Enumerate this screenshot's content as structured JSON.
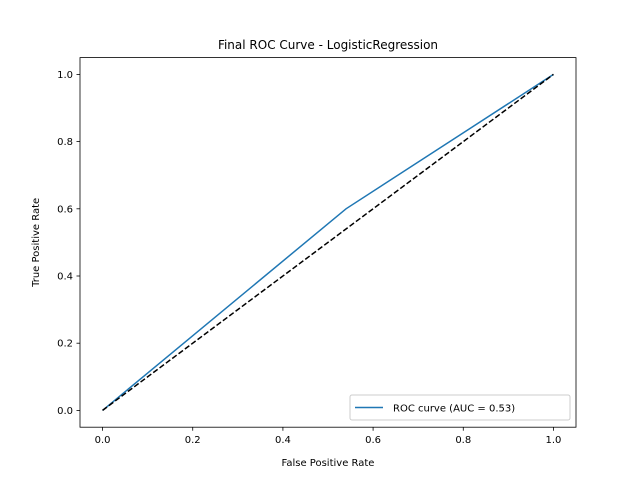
{
  "chart_data": {
    "type": "line",
    "title": "Final ROC Curve - LogisticRegression",
    "xlabel": "False Positive Rate",
    "ylabel": "True Positive Rate",
    "xlim": [
      -0.05,
      1.05
    ],
    "ylim": [
      -0.05,
      1.05
    ],
    "xticks": [
      0.0,
      0.2,
      0.4,
      0.6,
      0.8,
      1.0
    ],
    "xtick_labels": [
      "0.0",
      "0.2",
      "0.4",
      "0.6",
      "0.8",
      "1.0"
    ],
    "yticks": [
      0.0,
      0.2,
      0.4,
      0.6,
      0.8,
      1.0
    ],
    "ytick_labels": [
      "0.0",
      "0.2",
      "0.4",
      "0.6",
      "0.8",
      "1.0"
    ],
    "grid": false,
    "legend_position": "lower-right",
    "series": [
      {
        "name": "ROC curve (AUC = 0.53)",
        "color": "#1f77b4",
        "style": "solid",
        "x": [
          0.0,
          0.54,
          1.0
        ],
        "y": [
          0.0,
          0.6,
          1.0
        ]
      },
      {
        "color": "#000000",
        "style": "dashed",
        "x": [
          0.0,
          1.0
        ],
        "y": [
          0.0,
          1.0
        ]
      }
    ]
  }
}
